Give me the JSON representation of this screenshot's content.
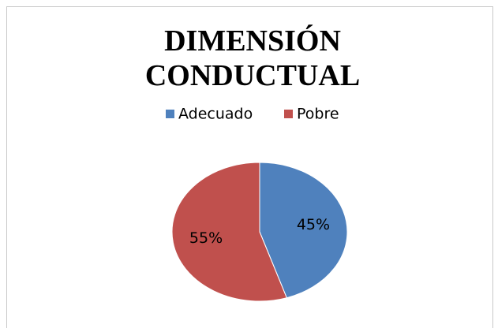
{
  "chart_data": {
    "type": "pie",
    "title": "DIMENSIÓN CONDUCTUAL",
    "categories": [
      "Adecuado",
      "Pobre"
    ],
    "values": [
      45,
      55
    ],
    "value_labels": [
      "45%",
      "55%"
    ],
    "colors": [
      "#4f81bd",
      "#c0504d"
    ],
    "legend": "top"
  }
}
